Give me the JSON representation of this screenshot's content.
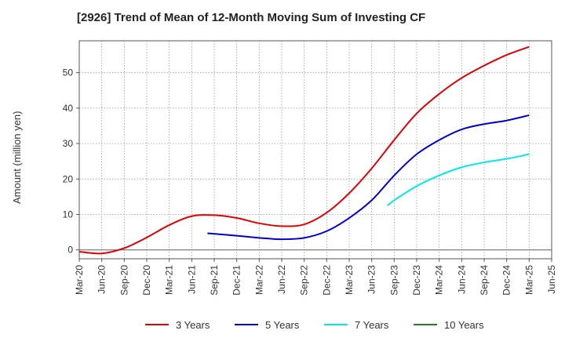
{
  "chart_data": {
    "type": "line",
    "title": "[2926]  Trend of Mean of 12-Month Moving Sum of Investing CF",
    "xlabel": "",
    "ylabel": "Amount (million yen)",
    "ylim": [
      -2.5,
      59
    ],
    "yticks": [
      0,
      10,
      20,
      30,
      40,
      50
    ],
    "x_tick_labels": [
      "Mar-20",
      "Jun-20",
      "Sep-20",
      "Dec-20",
      "Mar-21",
      "Jun-21",
      "Sep-21",
      "Dec-21",
      "Mar-22",
      "Jun-22",
      "Sep-22",
      "Dec-22",
      "Mar-23",
      "Jun-23",
      "Sep-23",
      "Dec-23",
      "Mar-24",
      "Jun-24",
      "Sep-24",
      "Dec-24",
      "Mar-25",
      "Jun-25"
    ],
    "grid": true,
    "legend_position": "bottom",
    "series": [
      {
        "name": "3 Years",
        "color": "#e00000",
        "points": [
          [
            0,
            -0.5
          ],
          [
            1,
            -1.0
          ],
          [
            2,
            0.5
          ],
          [
            3,
            3.5
          ],
          [
            4,
            7.0
          ],
          [
            5,
            9.5
          ],
          [
            6,
            9.8
          ],
          [
            7,
            9.0
          ],
          [
            8,
            7.5
          ],
          [
            9,
            6.7
          ],
          [
            10,
            7.2
          ],
          [
            11,
            10.5
          ],
          [
            12,
            16.0
          ],
          [
            13,
            23.0
          ],
          [
            14,
            31.0
          ],
          [
            15,
            38.5
          ],
          [
            16,
            44.0
          ],
          [
            17,
            48.5
          ],
          [
            18,
            52.0
          ],
          [
            19,
            55.0
          ],
          [
            20,
            57.3
          ]
        ]
      },
      {
        "name": "5 Years",
        "color": "#0000d0",
        "points": [
          [
            5.7,
            4.7
          ],
          [
            7,
            4.0
          ],
          [
            8,
            3.4
          ],
          [
            9,
            3.0
          ],
          [
            10,
            3.4
          ],
          [
            11,
            5.3
          ],
          [
            12,
            9.0
          ],
          [
            13,
            14.0
          ],
          [
            14,
            21.0
          ],
          [
            15,
            27.0
          ],
          [
            16,
            31.0
          ],
          [
            17,
            34.0
          ],
          [
            18,
            35.5
          ],
          [
            19,
            36.5
          ],
          [
            20,
            38.0
          ]
        ]
      },
      {
        "name": "7 Years",
        "color": "#00e8f0",
        "points": [
          [
            13.7,
            12.5
          ],
          [
            14,
            14.0
          ],
          [
            15,
            18.0
          ],
          [
            16,
            21.0
          ],
          [
            17,
            23.3
          ],
          [
            18,
            24.7
          ],
          [
            19,
            25.7
          ],
          [
            20,
            27.0
          ]
        ]
      },
      {
        "name": "10 Years",
        "color": "#208020",
        "points": []
      }
    ]
  }
}
